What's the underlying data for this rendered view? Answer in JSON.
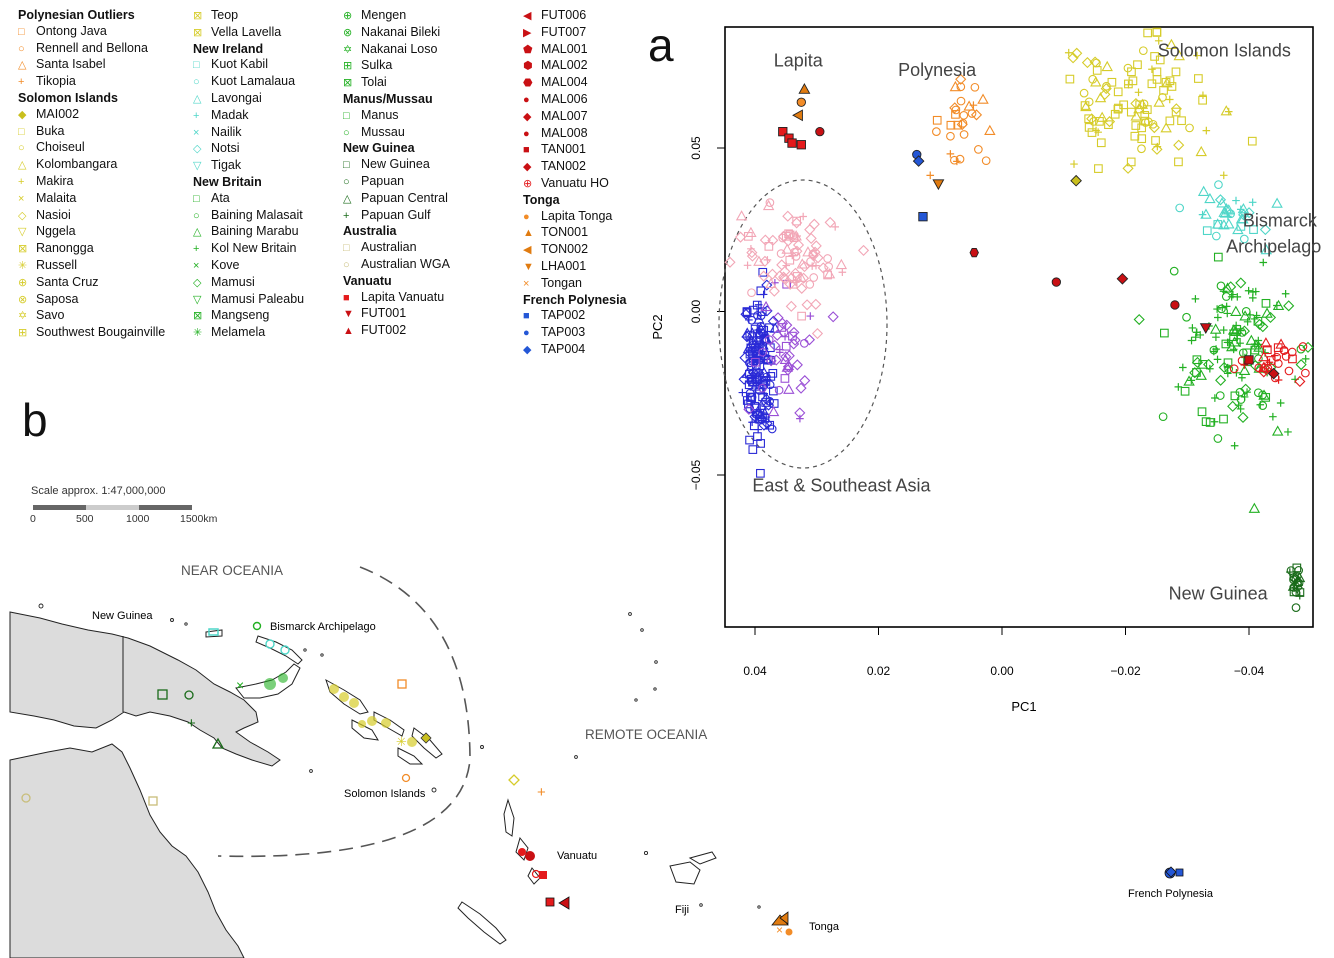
{
  "panel_labels": {
    "a": "a",
    "b": "b"
  },
  "legend": [
    {
      "heading": "Polynesian Outliers",
      "items": [
        {
          "label": "Ontong Java",
          "color": "#f28c28",
          "sym": "□"
        },
        {
          "label": "Rennell and Bellona",
          "color": "#f28c28",
          "sym": "○"
        },
        {
          "label": "Santa Isabel",
          "color": "#f28c28",
          "sym": "△"
        },
        {
          "label": "Tikopia",
          "color": "#f28c28",
          "sym": "+"
        }
      ]
    },
    {
      "heading": "Solomon Islands",
      "items": [
        {
          "label": "MAI002",
          "color": "#c9bf1e",
          "sym": "◆"
        },
        {
          "label": "Buka",
          "color": "#d6cc2a",
          "sym": "□"
        },
        {
          "label": "Choiseul",
          "color": "#d6cc2a",
          "sym": "○"
        },
        {
          "label": "Kolombangara",
          "color": "#d6cc2a",
          "sym": "△"
        },
        {
          "label": "Makira",
          "color": "#d6cc2a",
          "sym": "+"
        },
        {
          "label": "Malaita",
          "color": "#d6cc2a",
          "sym": "×"
        },
        {
          "label": "Nasioi",
          "color": "#d6cc2a",
          "sym": "◇"
        },
        {
          "label": "Nggela",
          "color": "#d6cc2a",
          "sym": "▽"
        },
        {
          "label": "Ranongga",
          "color": "#d6cc2a",
          "sym": "⊠"
        },
        {
          "label": "Russell",
          "color": "#d6cc2a",
          "sym": "✳"
        },
        {
          "label": "Santa Cruz",
          "color": "#d6cc2a",
          "sym": "⊕"
        },
        {
          "label": "Saposa",
          "color": "#d6cc2a",
          "sym": "⊗"
        },
        {
          "label": "Savo",
          "color": "#d6cc2a",
          "sym": "✡"
        },
        {
          "label": "Southwest Bougainville",
          "color": "#d6cc2a",
          "sym": "⊞"
        }
      ]
    },
    {
      "heading": "",
      "items": [
        {
          "label": "Teop",
          "color": "#d6cc2a",
          "sym": "⊠"
        },
        {
          "label": "Vella Lavella",
          "color": "#d6cc2a",
          "sym": "⊠"
        }
      ]
    },
    {
      "heading": "New Ireland",
      "items": [
        {
          "label": "Kuot Kabil",
          "color": "#4fd6c8",
          "sym": "□"
        },
        {
          "label": "Kuot Lamalaua",
          "color": "#4fd6c8",
          "sym": "○"
        },
        {
          "label": "Lavongai",
          "color": "#4fd6c8",
          "sym": "△"
        },
        {
          "label": "Madak",
          "color": "#4fd6c8",
          "sym": "+"
        },
        {
          "label": "Nailik",
          "color": "#4fd6c8",
          "sym": "×"
        },
        {
          "label": "Notsi",
          "color": "#4fd6c8",
          "sym": "◇"
        },
        {
          "label": "Tigak",
          "color": "#4fd6c8",
          "sym": "▽"
        }
      ]
    },
    {
      "heading": "New Britain",
      "items": [
        {
          "label": "Ata",
          "color": "#22b022",
          "sym": "□"
        },
        {
          "label": "Baining Malasait",
          "color": "#22b022",
          "sym": "○"
        },
        {
          "label": "Baining Marabu",
          "color": "#22b022",
          "sym": "△"
        },
        {
          "label": "Kol New Britain",
          "color": "#22b022",
          "sym": "+"
        },
        {
          "label": "Kove",
          "color": "#22b022",
          "sym": "×"
        },
        {
          "label": "Mamusi",
          "color": "#22b022",
          "sym": "◇"
        },
        {
          "label": "Mamusi Paleabu",
          "color": "#22b022",
          "sym": "▽"
        },
        {
          "label": "Mangseng",
          "color": "#22b022",
          "sym": "⊠"
        },
        {
          "label": "Melamela",
          "color": "#22b022",
          "sym": "✳"
        }
      ]
    },
    {
      "heading": "",
      "items": [
        {
          "label": "Mengen",
          "color": "#22b022",
          "sym": "⊕"
        },
        {
          "label": "Nakanai Bileki",
          "color": "#22b022",
          "sym": "⊗"
        },
        {
          "label": "Nakanai Loso",
          "color": "#22b022",
          "sym": "✡"
        },
        {
          "label": "Sulka",
          "color": "#22b022",
          "sym": "⊞"
        },
        {
          "label": "Tolai",
          "color": "#22b022",
          "sym": "⊠"
        }
      ]
    },
    {
      "heading": "Manus/Mussau",
      "items": [
        {
          "label": "Manus",
          "color": "#22b022",
          "sym": "□"
        },
        {
          "label": "Mussau",
          "color": "#22b022",
          "sym": "○"
        }
      ]
    },
    {
      "heading": "New Guinea",
      "items": [
        {
          "label": "New Guinea",
          "color": "#1a6b1a",
          "sym": "□"
        },
        {
          "label": "Papuan",
          "color": "#1a6b1a",
          "sym": "○"
        },
        {
          "label": "Papuan Central",
          "color": "#1a6b1a",
          "sym": "△"
        },
        {
          "label": "Papuan Gulf",
          "color": "#1a6b1a",
          "sym": "+"
        }
      ]
    },
    {
      "heading": "Australia",
      "items": [
        {
          "label": "Australian",
          "color": "#c8bd7a",
          "sym": "□"
        },
        {
          "label": "Australian WGA",
          "color": "#c8bd7a",
          "sym": "○"
        }
      ]
    },
    {
      "heading": "Vanuatu",
      "items": [
        {
          "label": "Lapita Vanuatu",
          "color": "#e41a1c",
          "sym": "■"
        },
        {
          "label": "FUT001",
          "color": "#c91014",
          "sym": "▼"
        },
        {
          "label": "FUT002",
          "color": "#c91014",
          "sym": "▲"
        }
      ]
    },
    {
      "heading": "",
      "items": [
        {
          "label": "FUT006",
          "color": "#c91014",
          "sym": "◀"
        },
        {
          "label": "FUT007",
          "color": "#c91014",
          "sym": "▶"
        },
        {
          "label": "MAL001",
          "color": "#c91014",
          "sym": "⬟"
        },
        {
          "label": "MAL002",
          "color": "#c91014",
          "sym": "⬢"
        },
        {
          "label": "MAL004",
          "color": "#c91014",
          "sym": "⬣"
        },
        {
          "label": "MAL006",
          "color": "#c91014",
          "sym": "●"
        },
        {
          "label": "MAL007",
          "color": "#c91014",
          "sym": "◆"
        },
        {
          "label": "MAL008",
          "color": "#c91014",
          "sym": "●"
        },
        {
          "label": "TAN001",
          "color": "#c91014",
          "sym": "■"
        },
        {
          "label": "TAN002",
          "color": "#c91014",
          "sym": "◆"
        },
        {
          "label": "Vanuatu HO",
          "color": "#e41a1c",
          "sym": "⊕"
        }
      ]
    },
    {
      "heading": "Tonga",
      "items": [
        {
          "label": "Lapita Tonga",
          "color": "#f28c28",
          "sym": "●"
        },
        {
          "label": "TON001",
          "color": "#e07b10",
          "sym": "▲"
        },
        {
          "label": "TON002",
          "color": "#e07b10",
          "sym": "◀"
        },
        {
          "label": "LHA001",
          "color": "#e07b10",
          "sym": "▼"
        },
        {
          "label": "Tongan",
          "color": "#f28c28",
          "sym": "×"
        }
      ]
    },
    {
      "heading": "French Polynesia",
      "items": [
        {
          "label": "TAP002",
          "color": "#2457d6",
          "sym": "■"
        },
        {
          "label": "TAP003",
          "color": "#2457d6",
          "sym": "●"
        },
        {
          "label": "TAP004",
          "color": "#2457d6",
          "sym": "◆"
        }
      ]
    }
  ],
  "chart_data": {
    "type": "scatter",
    "xlabel": "PC1",
    "ylabel": "PC2",
    "xlim": [
      0.04,
      -0.05
    ],
    "ylim": [
      -0.095,
      0.085
    ],
    "x_ticks": [
      0.04,
      0.02,
      0.0,
      -0.02,
      -0.04
    ],
    "x_tick_labels": [
      "0.04",
      "0.02",
      "0.00",
      "−0.02",
      "−0.04"
    ],
    "y_ticks": [
      0.05,
      0.0,
      -0.05
    ],
    "y_tick_labels": [
      "0.05",
      "0.00",
      "−0.05"
    ],
    "region_labels": [
      {
        "text": "Lapita",
        "x": 0.033,
        "y": 0.075
      },
      {
        "text": "Polynesia",
        "x": 0.0105,
        "y": 0.072
      },
      {
        "text": "Solomon Islands",
        "x": -0.036,
        "y": 0.078
      },
      {
        "text": "Bismarck",
        "x": -0.045,
        "y": 0.026
      },
      {
        "text": "Archipelago",
        "x": -0.044,
        "y": 0.018
      },
      {
        "text": "East & Southeast Asia",
        "x": 0.026,
        "y": -0.055
      },
      {
        "text": "New Guinea",
        "x": -0.035,
        "y": -0.088
      }
    ],
    "series": [
      {
        "name": "East & Southeast Asia",
        "color": "#2a2ad6",
        "shape": "square",
        "cx": 0.0395,
        "cy": -0.018,
        "sx": 0.0012,
        "sy": 0.012,
        "n": 160
      },
      {
        "name": "East & Southeast Asia (violet)",
        "color": "#9a4fd6",
        "shape": "diamond",
        "cx": 0.035,
        "cy": -0.012,
        "sx": 0.0022,
        "sy": 0.009,
        "n": 45
      },
      {
        "name": "East & Southeast Asia (pink)",
        "color": "#f2a6b6",
        "shape": "diamond",
        "cx": 0.034,
        "cy": 0.017,
        "sx": 0.004,
        "sy": 0.007,
        "n": 90
      },
      {
        "name": "Polynesia",
        "color": "#f28c28",
        "shape": "circle",
        "cx": 0.006,
        "cy": 0.057,
        "sx": 0.0025,
        "sy": 0.006,
        "n": 30
      },
      {
        "name": "Solomon Islands",
        "color": "#d6cc2a",
        "shape": "square",
        "cx": -0.022,
        "cy": 0.062,
        "sx": 0.007,
        "sy": 0.011,
        "n": 110
      },
      {
        "name": "Bismarck Archipelago (New Ireland)",
        "color": "#4fd6c8",
        "shape": "triangle",
        "cx": -0.036,
        "cy": 0.029,
        "sx": 0.003,
        "sy": 0.004,
        "n": 35
      },
      {
        "name": "Bismarck Archipelago (New Britain)",
        "color": "#22b022",
        "shape": "cross",
        "cx": -0.038,
        "cy": -0.012,
        "sx": 0.005,
        "sy": 0.012,
        "n": 150
      },
      {
        "name": "Vanuatu",
        "color": "#e41a1c",
        "shape": "circle",
        "cx": -0.044,
        "cy": -0.015,
        "sx": 0.003,
        "sy": 0.004,
        "n": 30
      },
      {
        "name": "New Guinea",
        "color": "#1a6b1a",
        "shape": "circle",
        "cx": -0.0475,
        "cy": -0.082,
        "sx": 0.0006,
        "sy": 0.003,
        "n": 22
      }
    ],
    "highlights": [
      {
        "name": "Lapita Vanuatu",
        "color": "#e41a1c",
        "shape": "square-filled",
        "points": [
          [
            0.0355,
            0.055
          ],
          [
            0.0345,
            0.053
          ],
          [
            0.034,
            0.0515
          ],
          [
            0.0325,
            0.051
          ]
        ]
      },
      {
        "name": "Lapita Tonga",
        "color": "#f28c28",
        "shape": "circle-filled",
        "points": [
          [
            0.0325,
            0.064
          ]
        ]
      },
      {
        "name": "TON001",
        "color": "#e07b10",
        "shape": "triangle-filled",
        "points": [
          [
            0.032,
            0.068
          ]
        ]
      },
      {
        "name": "TON002",
        "color": "#e07b10",
        "shape": "tri-left-filled",
        "points": [
          [
            0.033,
            0.06
          ]
        ]
      },
      {
        "name": "MAL006",
        "color": "#c91014",
        "shape": "circle-filled",
        "points": [
          [
            0.0295,
            0.055
          ]
        ]
      },
      {
        "name": "TAP003",
        "color": "#2457d6",
        "shape": "circle-filled",
        "points": [
          [
            0.0138,
            0.048
          ]
        ]
      },
      {
        "name": "TAP004",
        "color": "#2457d6",
        "shape": "diamond-filled",
        "points": [
          [
            0.0135,
            0.046
          ]
        ]
      },
      {
        "name": "LHA001",
        "color": "#e07b10",
        "shape": "tri-down-filled",
        "points": [
          [
            0.0103,
            0.039
          ]
        ]
      },
      {
        "name": "TAP002",
        "color": "#2457d6",
        "shape": "square-filled",
        "points": [
          [
            0.0128,
            0.029
          ]
        ]
      },
      {
        "name": "MAL002",
        "color": "#c91014",
        "shape": "hex-filled",
        "points": [
          [
            0.0045,
            0.018
          ]
        ]
      },
      {
        "name": "MAI002",
        "color": "#c9bf1e",
        "shape": "diamond-filled",
        "points": [
          [
            -0.012,
            0.04
          ]
        ]
      },
      {
        "name": "MAL008",
        "color": "#c91014",
        "shape": "circle-filled",
        "points": [
          [
            -0.0088,
            0.009
          ]
        ]
      },
      {
        "name": "MAL007",
        "color": "#c91014",
        "shape": "diamond-filled",
        "points": [
          [
            -0.0195,
            0.01
          ]
        ]
      },
      {
        "name": "MAL001",
        "color": "#c91014",
        "shape": "circle-filled",
        "points": [
          [
            -0.028,
            0.002
          ]
        ]
      },
      {
        "name": "FUT001",
        "color": "#c91014",
        "shape": "tri-down-filled",
        "points": [
          [
            -0.033,
            -0.005
          ]
        ]
      },
      {
        "name": "TAN001",
        "color": "#c91014",
        "shape": "square-filled",
        "points": [
          [
            -0.04,
            -0.0148
          ]
        ]
      },
      {
        "name": "TAN002",
        "color": "#c91014",
        "shape": "diamond-filled",
        "points": [
          [
            -0.044,
            -0.019
          ]
        ]
      }
    ]
  },
  "map": {
    "scale_text": "Scale approx. 1:47,000,000",
    "scale_ticks": [
      "0",
      "500",
      "1000",
      "1500km"
    ],
    "labels": {
      "near_oceania": "NEAR OCEANIA",
      "remote_oceania": "REMOTE OCEANIA",
      "new_guinea": "New Guinea",
      "bismarck": "Bismarck Archipelago",
      "solomon": "Solomon Islands",
      "vanuatu": "Vanuatu",
      "fiji": "Fiji",
      "tonga": "Tonga",
      "french_polynesia": "French Polynesia"
    }
  }
}
